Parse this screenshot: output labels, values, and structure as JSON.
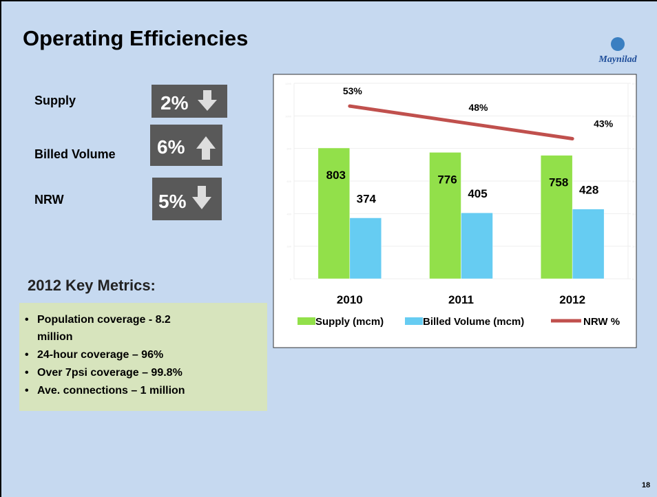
{
  "title": "Operating Efficiencies",
  "logo": "Maynilad",
  "page_number": "18",
  "metrics": [
    {
      "label": "Supply",
      "value": "2%"
    },
    {
      "label": "Billed Volume",
      "value": "6%"
    },
    {
      "label": "NRW",
      "value": "5%"
    }
  ],
  "key_metrics": {
    "heading": "2012 Key Metrics:",
    "items": [
      "Population coverage  - 8.2",
      "million",
      "24-hour coverage – 96%",
      "Over 7psi coverage – 99.8%",
      "Ave. connections – 1 million"
    ]
  },
  "chart_data": {
    "type": "bar_line",
    "categories": [
      "2010",
      "2011",
      "2012"
    ],
    "series": [
      {
        "name": "Supply (mcm)",
        "color": "#92e04a",
        "values": [
          803,
          776,
          758
        ]
      },
      {
        "name": "Billed Volume (mcm)",
        "color": "#66ccf2",
        "values": [
          374,
          405,
          428
        ]
      },
      {
        "name": "NRW %",
        "color": "#c0504d",
        "type": "line",
        "axis": "y2",
        "values": [
          53,
          48,
          43
        ],
        "value_labels": [
          "53%",
          "48%",
          "43%"
        ]
      }
    ],
    "ylim": [
      0,
      1200
    ],
    "yticks": [
      0,
      200,
      400,
      600,
      800,
      1000,
      1200
    ],
    "y2lim": [
      0,
      60
    ],
    "y2ticks": [
      0,
      10,
      20,
      30,
      40,
      50,
      60
    ],
    "grid": true,
    "legend": "bottom"
  }
}
